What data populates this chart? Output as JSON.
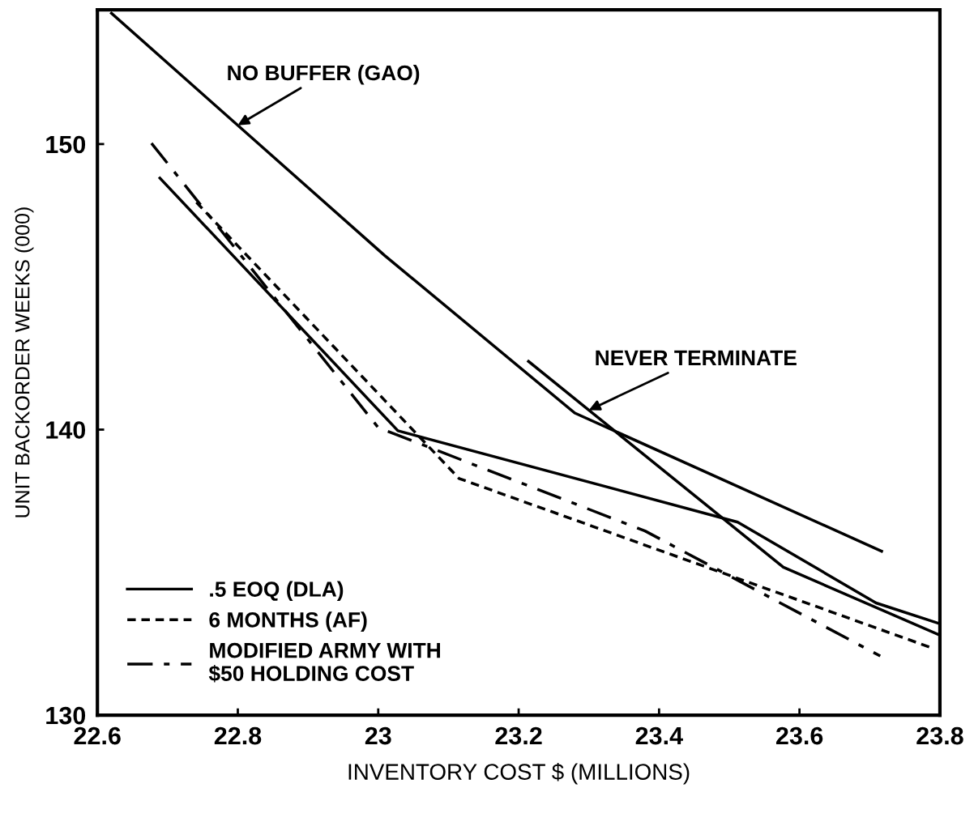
{
  "chart_data": {
    "type": "line",
    "xlabel": "INVENTORY COST $ (MILLIONS)",
    "ylabel": "UNIT BACKORDER WEEKS (000)",
    "xlim": [
      22.6,
      23.8
    ],
    "ylim": [
      130,
      154.7
    ],
    "xticks": [
      22.6,
      22.8,
      23,
      23.2,
      23.4,
      23.6,
      23.8
    ],
    "yticks": [
      130,
      140,
      150
    ],
    "grid": false,
    "legend": "bottom left",
    "marker": "none",
    "series": [
      {
        "color": "#000000",
        "line_style": "solid",
        "x": [
          22.62,
          23.009,
          23.28,
          23.717
        ],
        "values": [
          154.58,
          146.1,
          140.58,
          135.74
        ]
      },
      {
        "color": "#000000",
        "line_style": "solid",
        "x": [
          23.214,
          23.577,
          23.8
        ],
        "values": [
          142.39,
          135.18,
          132.8
        ]
      },
      {
        "name": ".5 EOQ (DLA)",
        "color": "#000000",
        "line_style": "solid",
        "x": [
          22.689,
          23.028,
          23.512,
          23.709,
          23.8
        ],
        "values": [
          148.81,
          139.96,
          136.76,
          133.93,
          133.2
        ]
      },
      {
        "name": "6 MONTHS (AF)",
        "color": "#000000",
        "line_style": "dashed",
        "x": [
          22.741,
          23.115,
          23.789
        ],
        "values": [
          147.96,
          138.29,
          132.35
        ]
      },
      {
        "name": "MODIFIED ARMY WITH\n$50 HOLDING COST",
        "color": "#000000",
        "line_style": "dashdot",
        "x": [
          22.677,
          23.0,
          23.38,
          23.715
        ],
        "values": [
          150.03,
          140.07,
          136.45,
          132.07
        ]
      }
    ],
    "annotations": [
      {
        "text": "NO BUFFER (GAO)",
        "x": 22.8,
        "y": 150.66
      },
      {
        "text": "NEVER TERMINATE",
        "x": 23.3,
        "y": 140.68
      }
    ]
  }
}
